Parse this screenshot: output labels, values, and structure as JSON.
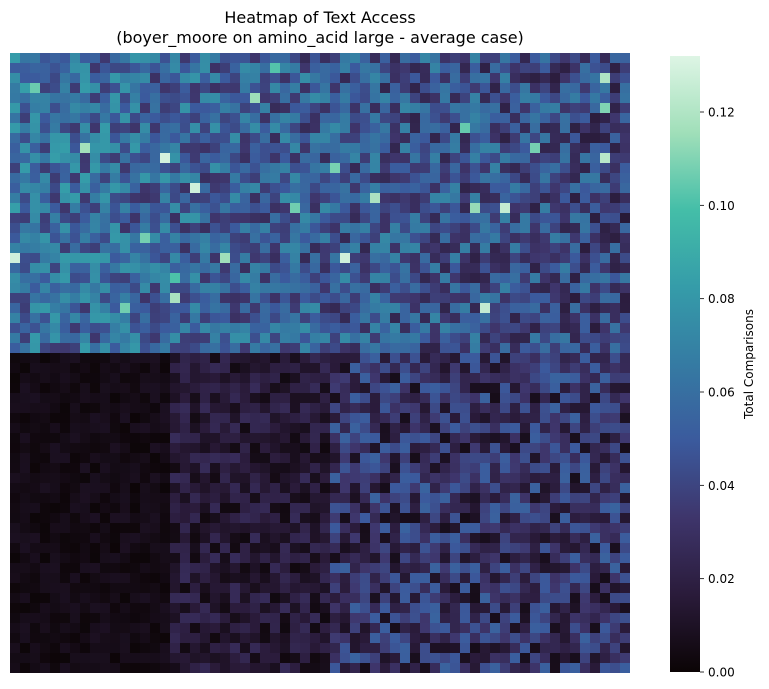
{
  "chart_data": {
    "type": "heatmap",
    "title_lines": [
      "Heatmap of Text Access",
      "(boyer_moore on amino_acid large - average case)"
    ],
    "xlabel": "",
    "ylabel": "",
    "grid": false,
    "legend": "none",
    "rows": 62,
    "cols": 62,
    "value_range": [
      0,
      0.132
    ],
    "colormap": "mako",
    "colormap_stops": [
      "#0b0405",
      "#2a1b3a",
      "#3e356b",
      "#3b5a9d",
      "#357ba3",
      "#359ca9",
      "#44bea8",
      "#a0dfb9",
      "#def5e5"
    ],
    "regions": [
      {
        "name": "top band",
        "rows": [
          0,
          29
        ],
        "cols": [
          0,
          61
        ],
        "approx_mean": 0.05,
        "approx_peak": 0.13
      },
      {
        "name": "bottom-left low block",
        "rows": [
          30,
          61
        ],
        "cols": [
          0,
          15
        ],
        "approx_mean": 0.005
      },
      {
        "name": "bottom-middle region",
        "rows": [
          30,
          61
        ],
        "cols": [
          16,
          31
        ],
        "approx_mean": 0.015
      },
      {
        "name": "bottom-right region",
        "rows": [
          30,
          61
        ],
        "cols": [
          32,
          61
        ],
        "approx_mean": 0.03
      }
    ],
    "colorbar": {
      "label": "Total Comparisons",
      "ticks": [
        0.0,
        0.02,
        0.04,
        0.06,
        0.08,
        0.1,
        0.12
      ],
      "tick_labels": [
        "0.00",
        "0.02",
        "0.04",
        "0.06",
        "0.08",
        "0.10",
        "0.12"
      ]
    }
  }
}
